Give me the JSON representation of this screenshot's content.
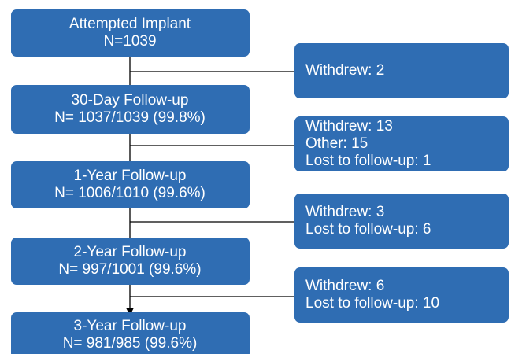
{
  "nodes": [
    {
      "lines": [
        "Attempted Implant",
        "N=1039"
      ]
    },
    {
      "lines": [
        "30-Day Follow-up",
        "N= 1037/1039 (99.8%)"
      ]
    },
    {
      "lines": [
        "1-Year Follow-up",
        "N= 1006/1010 (99.6%)"
      ]
    },
    {
      "lines": [
        "2-Year Follow-up",
        "N= 997/1001 (99.6%)"
      ]
    },
    {
      "lines": [
        "3-Year Follow-up",
        "N= 981/985 (99.6%)"
      ]
    }
  ],
  "exclusions": [
    {
      "lines": [
        "Withdrew: 2"
      ]
    },
    {
      "lines": [
        "Withdrew: 13",
        "Other: 15",
        "Lost to follow-up: 1"
      ]
    },
    {
      "lines": [
        "Withdrew: 3",
        "Lost to follow-up: 6"
      ]
    },
    {
      "lines": [
        "Withdrew: 6",
        "Lost to follow-up: 10"
      ]
    }
  ]
}
